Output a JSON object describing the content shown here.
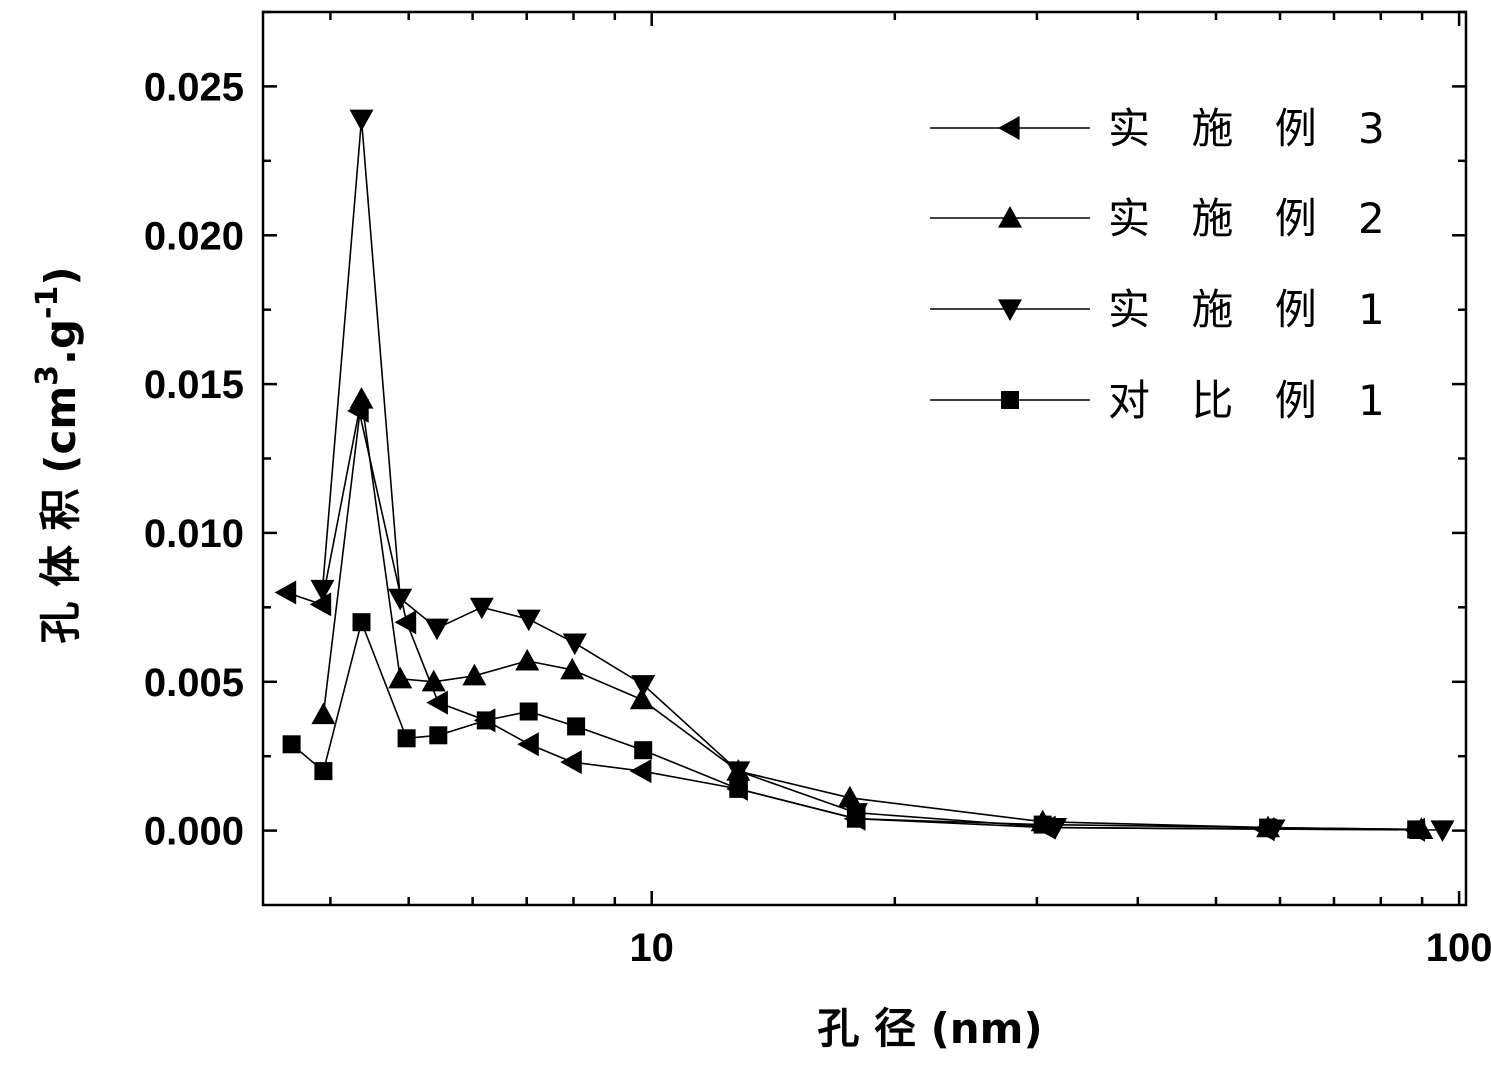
{
  "chart_data": {
    "type": "line",
    "xlabel": "孔 径 (nm)",
    "ylabel": "孔 体 积 (cm",
    "ylabel_sup1": "3",
    "ylabel_mid": ".g",
    "ylabel_sup2": "-1",
    "ylabel_end": ")",
    "x_scale": "log",
    "xlim": [
      3.3,
      102
    ],
    "ylim": [
      -0.0025,
      0.0275
    ],
    "x_ticks": [
      10,
      100
    ],
    "x_tick_labels": [
      "10",
      "100"
    ],
    "y_ticks": [
      0.0,
      0.005,
      0.01,
      0.015,
      0.02,
      0.025
    ],
    "y_tick_labels": [
      "0.000",
      "0.005",
      "0.010",
      "0.015",
      "0.020",
      "0.025"
    ],
    "grid": false,
    "legend_position": "top-right",
    "series": [
      {
        "name": "实 施 例 3",
        "marker": "triangle-left",
        "x": [
          3.53,
          3.9,
          4.34,
          4.97,
          5.44,
          6.23,
          7.05,
          7.97,
          9.72,
          12.8,
          17.9,
          30.8,
          57.5,
          88.3
        ],
        "y": [
          0.008,
          0.0076,
          0.0141,
          0.007,
          0.0043,
          0.0037,
          0.0029,
          0.0023,
          0.002,
          0.0014,
          0.0004,
          0.0001,
          5e-05,
          3e-05
        ]
      },
      {
        "name": "实 施 例 2",
        "marker": "triangle-up",
        "x": [
          3.92,
          4.37,
          4.88,
          5.37,
          6.03,
          7.01,
          7.97,
          9.72,
          12.8,
          17.6,
          30.5,
          58.0,
          89.8
        ],
        "y": [
          0.0039,
          0.0145,
          0.0051,
          0.005,
          0.0052,
          0.0057,
          0.0054,
          0.0044,
          0.002,
          0.0011,
          0.0003,
          0.0001,
          4e-05
        ]
      },
      {
        "name": "实 施 例 1",
        "marker": "triangle-down",
        "x": [
          3.91,
          4.37,
          4.88,
          5.42,
          6.16,
          7.04,
          8.03,
          9.76,
          12.8,
          17.9,
          31.6,
          58.9,
          95.4
        ],
        "y": [
          0.0081,
          0.0239,
          0.0078,
          0.0068,
          0.0075,
          0.0071,
          0.0063,
          0.0049,
          0.002,
          0.0006,
          0.0001,
          5e-05,
          2e-05
        ]
      },
      {
        "name": "对 比 例 1",
        "marker": "square",
        "x": [
          3.58,
          3.92,
          4.37,
          4.97,
          5.44,
          6.23,
          7.04,
          8.06,
          9.76,
          12.8,
          17.9,
          30.5,
          58.0,
          88.5
        ],
        "y": [
          0.0029,
          0.002,
          0.007,
          0.0031,
          0.0032,
          0.0037,
          0.004,
          0.0035,
          0.0027,
          0.0014,
          0.0004,
          0.0002,
          0.0001,
          4e-05
        ]
      }
    ]
  }
}
